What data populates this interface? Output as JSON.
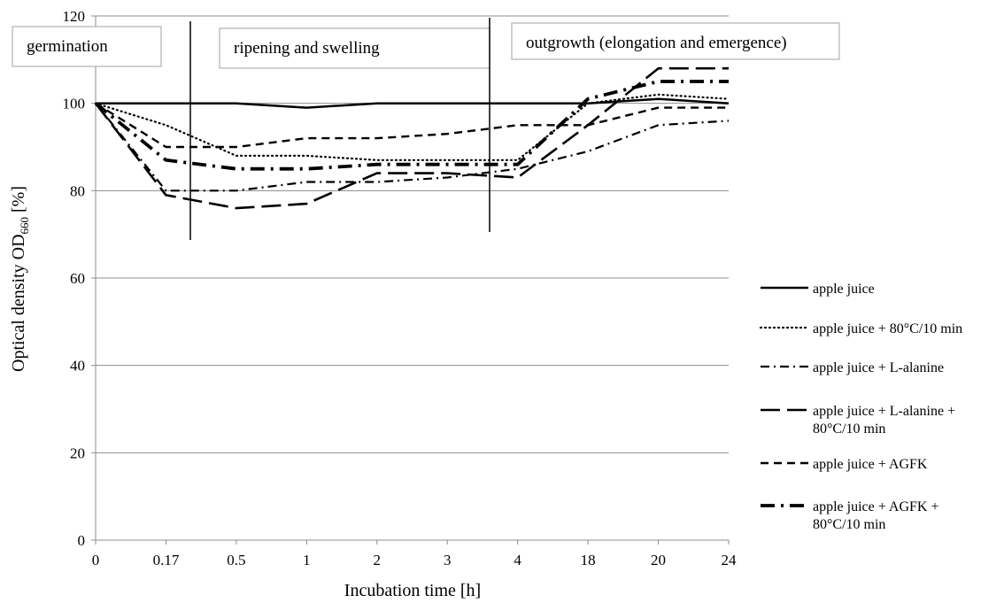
{
  "chart_data": {
    "type": "line",
    "xlabel": "Incubation time [h]",
    "ylabel": "Optical density OD",
    "ylabel_sub": "660",
    "ylabel_unit": " [%]",
    "categories": [
      "0",
      "0.17",
      "0.5",
      "1",
      "2",
      "3",
      "4",
      "18",
      "20",
      "24"
    ],
    "ylim": [
      0,
      120
    ],
    "yticks": [
      0,
      20,
      40,
      60,
      80,
      100,
      120
    ],
    "grid": "horizontal",
    "legend": "right",
    "phases": [
      {
        "label": "germination"
      },
      {
        "label": "ripening and swelling"
      },
      {
        "label": "outgrowth (elongation and emergence)"
      }
    ],
    "series": [
      {
        "name": "apple juice",
        "style": "solid",
        "values": [
          100,
          100,
          100,
          99,
          100,
          100,
          100,
          100,
          101,
          100
        ]
      },
      {
        "name": "apple juice + 80°C/10 min",
        "style": "dotted",
        "values": [
          100,
          95,
          88,
          88,
          87,
          87,
          87,
          100,
          102,
          101
        ]
      },
      {
        "name": "apple juice + L-alanine",
        "style": "dashdot",
        "values": [
          100,
          80,
          80,
          82,
          82,
          83,
          85,
          89,
          95,
          96
        ]
      },
      {
        "name": "apple juice + L-alanine + 80°C/10 min",
        "name_lines": [
          "apple juice + L-alanine +",
          "80°C/10 min"
        ],
        "style": "longdash",
        "values": [
          100,
          79,
          76,
          77,
          84,
          84,
          83,
          95,
          108,
          108
        ]
      },
      {
        "name": "apple juice + AGFK",
        "style": "dashed",
        "values": [
          100,
          90,
          90,
          92,
          92,
          93,
          95,
          95,
          99,
          99
        ]
      },
      {
        "name": "apple juice + AGFK + 80°C/10 min",
        "name_lines": [
          "apple juice + AGFK +",
          "80°C/10 min"
        ],
        "style": "heavydashdot",
        "values": [
          100,
          87,
          85,
          85,
          86,
          86,
          86,
          101,
          105,
          105
        ]
      }
    ]
  }
}
